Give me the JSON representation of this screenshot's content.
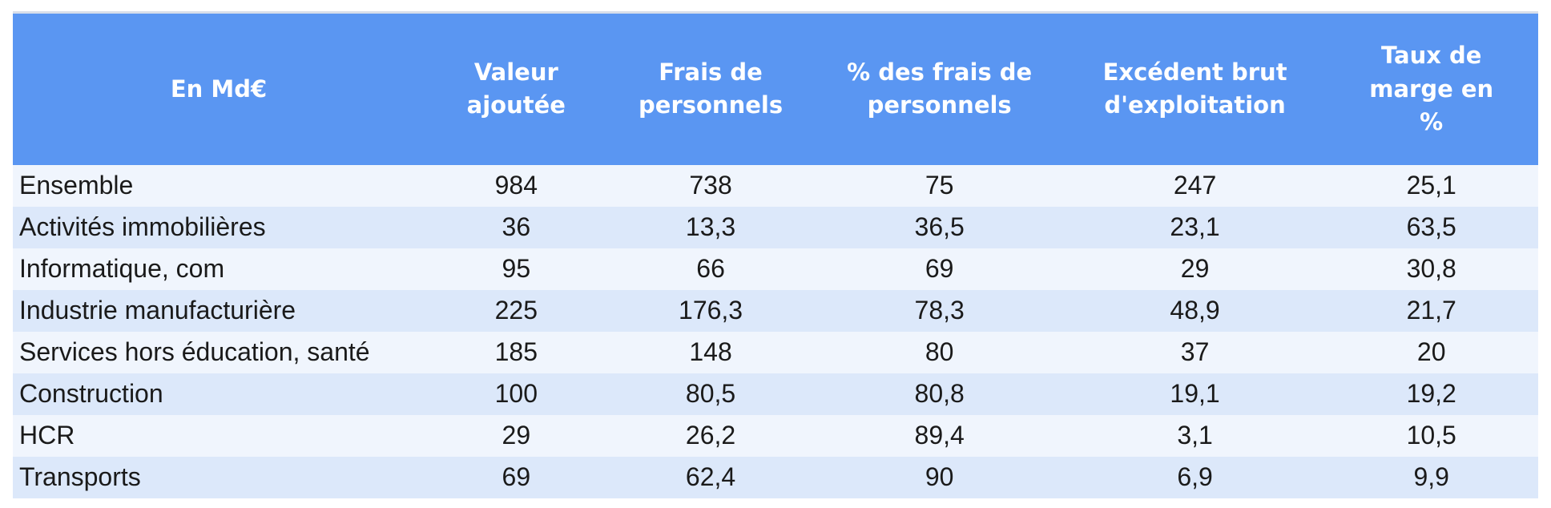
{
  "table": {
    "unit_label": "En Md€",
    "columns": [
      "Valeur ajoutée",
      "Frais de personnels",
      "% des frais de personnels",
      "Excédent brut d'exploitation",
      "Taux de marge en %"
    ],
    "rows": [
      {
        "label": "Ensemble",
        "values": [
          "984",
          "738",
          "75",
          "247",
          "25,1"
        ]
      },
      {
        "label": "Activités immobilières",
        "values": [
          "36",
          "13,3",
          "36,5",
          "23,1",
          "63,5"
        ]
      },
      {
        "label": "Informatique, com",
        "values": [
          "95",
          "66",
          "69",
          "29",
          "30,8"
        ]
      },
      {
        "label": "Industrie manufacturière",
        "values": [
          "225",
          "176,3",
          "78,3",
          "48,9",
          "21,7"
        ]
      },
      {
        "label": "Services hors éducation, santé",
        "values": [
          "185",
          "148",
          "80",
          "37",
          "20"
        ]
      },
      {
        "label": "Construction",
        "values": [
          "100",
          "80,5",
          "80,8",
          "19,1",
          "19,2"
        ]
      },
      {
        "label": "HCR",
        "values": [
          "29",
          "26,2",
          "89,4",
          "3,1",
          "10,5"
        ]
      },
      {
        "label": "Transports",
        "values": [
          "69",
          "62,4",
          "90",
          "6,9",
          "9,9"
        ]
      }
    ]
  },
  "colors": {
    "header_bg": "#5A96F2",
    "header_text": "#FFFFFF",
    "row_odd_bg": "#F0F5FD",
    "row_even_bg": "#DCE8FA",
    "body_text": "#1A1A1A",
    "top_line": "#D8DEEA",
    "page_bg": "#FFFFFF"
  },
  "chart_data": {
    "type": "table",
    "title": "En Md€",
    "columns": [
      "En Md€",
      "Valeur ajoutée",
      "Frais de personnels",
      "% des frais de personnels",
      "Excédent brut d'exploitation",
      "Taux de marge en %"
    ],
    "rows": [
      [
        "Ensemble",
        984,
        738,
        75,
        247,
        25.1
      ],
      [
        "Activités immobilières",
        36,
        13.3,
        36.5,
        23.1,
        63.5
      ],
      [
        "Informatique, com",
        95,
        66,
        69,
        29,
        30.8
      ],
      [
        "Industrie manufacturière",
        225,
        176.3,
        78.3,
        48.9,
        21.7
      ],
      [
        "Services hors éducation, santé",
        185,
        148,
        80,
        37,
        20
      ],
      [
        "Construction",
        100,
        80.5,
        80.8,
        19.1,
        19.2
      ],
      [
        "HCR",
        29,
        26.2,
        89.4,
        3.1,
        10.5
      ],
      [
        "Transports",
        69,
        62.4,
        90,
        6.9,
        9.9
      ]
    ]
  }
}
